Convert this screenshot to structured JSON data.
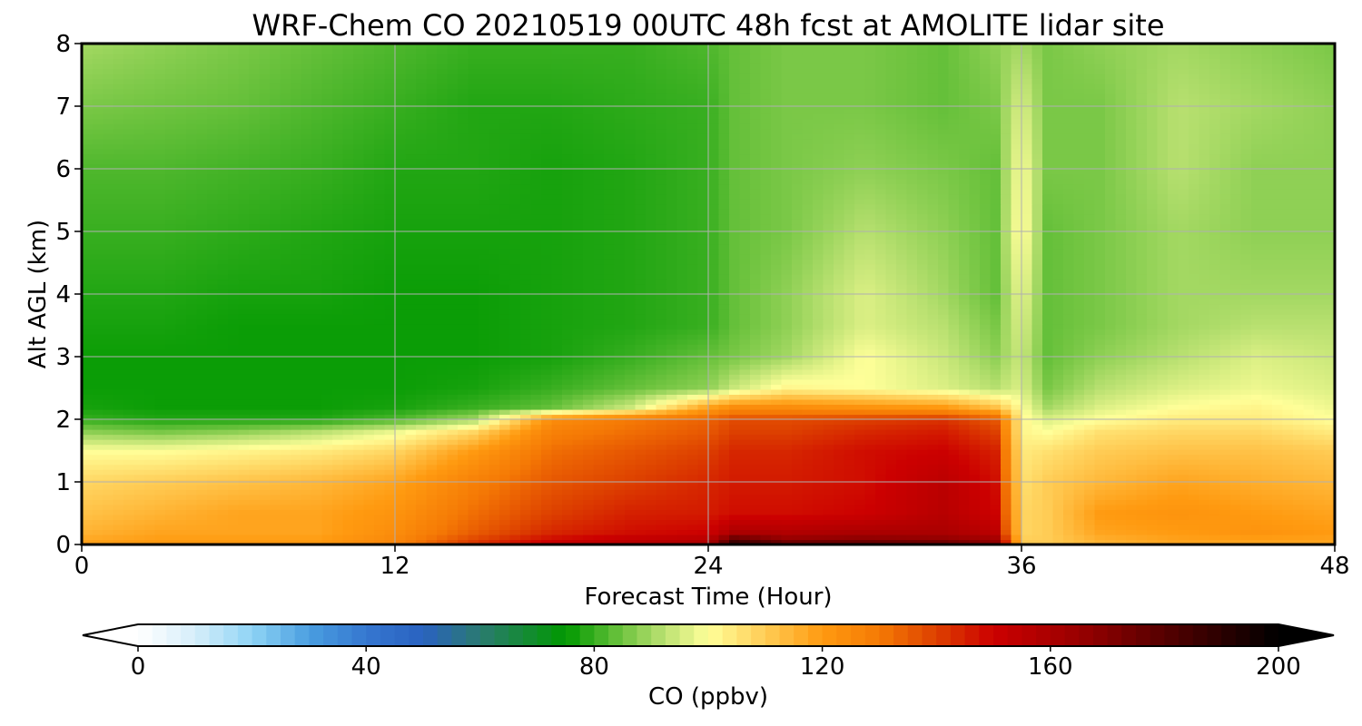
{
  "chart_data": {
    "type": "heatmap",
    "title": "WRF-Chem CO  20210519 00UTC 48h fcst at AMOLITE lidar site",
    "xlabel": "Forecast Time (Hour)",
    "ylabel": "Alt AGL (km)",
    "xlim": [
      0,
      48
    ],
    "ylim": [
      0,
      8
    ],
    "xticks": [
      "0",
      "12",
      "24",
      "36",
      "48"
    ],
    "yticks": [
      "0",
      "1",
      "2",
      "3",
      "4",
      "5",
      "6",
      "7",
      "8"
    ],
    "grid": true,
    "x": [
      0,
      3,
      6,
      9,
      12,
      15,
      18,
      21,
      24,
      25,
      27,
      30,
      33,
      35,
      36,
      37,
      39,
      42,
      45,
      48
    ],
    "y": [
      0,
      0.05,
      0.2,
      0.5,
      1.0,
      1.5,
      1.8,
      2.0,
      2.2,
      2.5,
      3.0,
      3.5,
      4.0,
      5.0,
      6.0,
      7.0,
      8.0
    ],
    "z": [
      [
        120,
        122,
        122,
        122,
        128,
        145,
        155,
        158,
        160,
        190,
        190,
        190,
        190,
        175,
        112,
        112,
        115,
        118,
        118,
        118
      ],
      [
        118,
        120,
        120,
        120,
        126,
        140,
        150,
        155,
        158,
        185,
        170,
        172,
        170,
        165,
        110,
        110,
        115,
        118,
        118,
        118
      ],
      [
        115,
        118,
        118,
        118,
        124,
        135,
        144,
        148,
        150,
        160,
        158,
        160,
        160,
        155,
        108,
        110,
        118,
        120,
        122,
        120
      ],
      [
        112,
        115,
        118,
        118,
        122,
        132,
        140,
        145,
        146,
        148,
        148,
        150,
        156,
        150,
        108,
        110,
        120,
        122,
        120,
        118
      ],
      [
        108,
        110,
        112,
        114,
        118,
        128,
        136,
        140,
        144,
        146,
        146,
        148,
        155,
        148,
        106,
        110,
        114,
        118,
        116,
        114
      ],
      [
        100,
        100,
        102,
        104,
        108,
        120,
        132,
        136,
        140,
        144,
        144,
        148,
        150,
        145,
        104,
        106,
        110,
        112,
        112,
        110
      ],
      [
        88,
        86,
        88,
        92,
        98,
        108,
        128,
        132,
        136,
        140,
        140,
        144,
        146,
        140,
        102,
        100,
        106,
        108,
        108,
        104
      ],
      [
        80,
        78,
        78,
        78,
        82,
        90,
        124,
        130,
        134,
        138,
        138,
        140,
        142,
        136,
        102,
        96,
        100,
        104,
        104,
        100
      ],
      [
        77,
        76,
        76,
        76,
        77,
        80,
        84,
        94,
        118,
        124,
        124,
        122,
        120,
        112,
        100,
        90,
        96,
        100,
        102,
        98
      ],
      [
        76,
        76,
        76,
        76,
        76,
        77,
        80,
        84,
        88,
        94,
        102,
        100,
        96,
        92,
        96,
        86,
        92,
        96,
        98,
        96
      ],
      [
        76,
        76,
        76,
        76,
        76,
        76,
        77,
        80,
        84,
        86,
        90,
        100,
        94,
        88,
        94,
        84,
        88,
        92,
        96,
        94
      ],
      [
        77,
        77,
        76,
        76,
        76,
        76,
        77,
        78,
        80,
        84,
        88,
        96,
        92,
        86,
        96,
        84,
        86,
        90,
        92,
        92
      ],
      [
        78,
        78,
        77,
        77,
        76,
        76,
        77,
        78,
        80,
        84,
        88,
        96,
        90,
        84,
        98,
        84,
        86,
        90,
        90,
        90
      ],
      [
        80,
        80,
        79,
        78,
        77,
        77,
        77,
        78,
        80,
        84,
        86,
        92,
        88,
        84,
        102,
        84,
        86,
        90,
        88,
        88
      ],
      [
        82,
        82,
        81,
        80,
        78,
        78,
        77,
        78,
        80,
        84,
        86,
        88,
        86,
        84,
        100,
        86,
        86,
        92,
        88,
        88
      ],
      [
        86,
        85,
        84,
        82,
        80,
        78,
        78,
        79,
        80,
        84,
        86,
        86,
        84,
        86,
        96,
        86,
        86,
        92,
        90,
        88
      ],
      [
        90,
        88,
        86,
        84,
        82,
        80,
        80,
        80,
        82,
        84,
        86,
        86,
        84,
        88,
        90,
        86,
        88,
        90,
        88,
        86
      ]
    ],
    "colorbar": {
      "label": "CO  (ppbv)",
      "min": 0,
      "max": 200,
      "ticks": [
        "0",
        "40",
        "80",
        "120",
        "160",
        "200"
      ],
      "extend": "both",
      "stops": [
        [
          0,
          "#ffffff"
        ],
        [
          10,
          "#d6eefa"
        ],
        [
          20,
          "#8fd4f5"
        ],
        [
          30,
          "#4a9ee0"
        ],
        [
          40,
          "#3577d0"
        ],
        [
          50,
          "#2a62c0"
        ],
        [
          60,
          "#2a7a70"
        ],
        [
          75,
          "#009900"
        ],
        [
          85,
          "#70c440"
        ],
        [
          92,
          "#b8e070"
        ],
        [
          100,
          "#ffff99"
        ],
        [
          110,
          "#ffcc55"
        ],
        [
          120,
          "#ff9a10"
        ],
        [
          130,
          "#f57a05"
        ],
        [
          140,
          "#dd4000"
        ],
        [
          150,
          "#cc0000"
        ],
        [
          165,
          "#990000"
        ],
        [
          180,
          "#550000"
        ],
        [
          200,
          "#000000"
        ]
      ]
    }
  }
}
